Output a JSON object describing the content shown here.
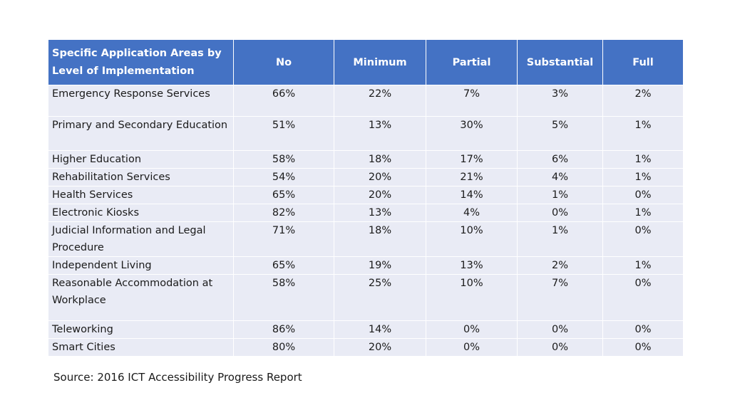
{
  "table": {
    "headers": [
      "Specific Application Areas by Level of Implementation",
      "No",
      "Minimum",
      "Partial",
      "Substantial",
      "Full"
    ],
    "rows": [
      {
        "label": "Emergency Response Services",
        "values": [
          "66%",
          "22%",
          "7%",
          "3%",
          "2%"
        ]
      },
      {
        "label": "Primary and Secondary Education",
        "values": [
          "51%",
          "13%",
          "30%",
          "5%",
          "1%"
        ]
      },
      {
        "label": "Higher Education",
        "values": [
          "58%",
          "18%",
          "17%",
          "6%",
          "1%"
        ]
      },
      {
        "label": "Rehabilitation Services",
        "values": [
          "54%",
          "20%",
          "21%",
          "4%",
          "1%"
        ]
      },
      {
        "label": "Health Services",
        "values": [
          "65%",
          "20%",
          "14%",
          "1%",
          "0%"
        ]
      },
      {
        "label": "Electronic Kiosks",
        "values": [
          "82%",
          "13%",
          "4%",
          "0%",
          "1%"
        ]
      },
      {
        "label": "Judicial Information and Legal Procedure",
        "values": [
          "71%",
          "18%",
          "10%",
          "1%",
          "0%"
        ]
      },
      {
        "label": "Independent Living",
        "values": [
          "65%",
          "19%",
          "13%",
          "2%",
          "1%"
        ]
      },
      {
        "label": "Reasonable Accommodation at Workplace",
        "values": [
          "58%",
          "25%",
          "10%",
          "7%",
          "0%"
        ]
      },
      {
        "label": "Teleworking",
        "values": [
          "86%",
          "14%",
          "0%",
          "0%",
          "0%"
        ]
      },
      {
        "label": "Smart Cities",
        "values": [
          "80%",
          "20%",
          "0%",
          "0%",
          "0%"
        ]
      }
    ]
  },
  "source": "Source: 2016 ICT Accessibility Progress Report",
  "colors": {
    "header_bg": "#4472c4",
    "row_bg": "#e9ebf5",
    "header_text": "#ffffff"
  }
}
